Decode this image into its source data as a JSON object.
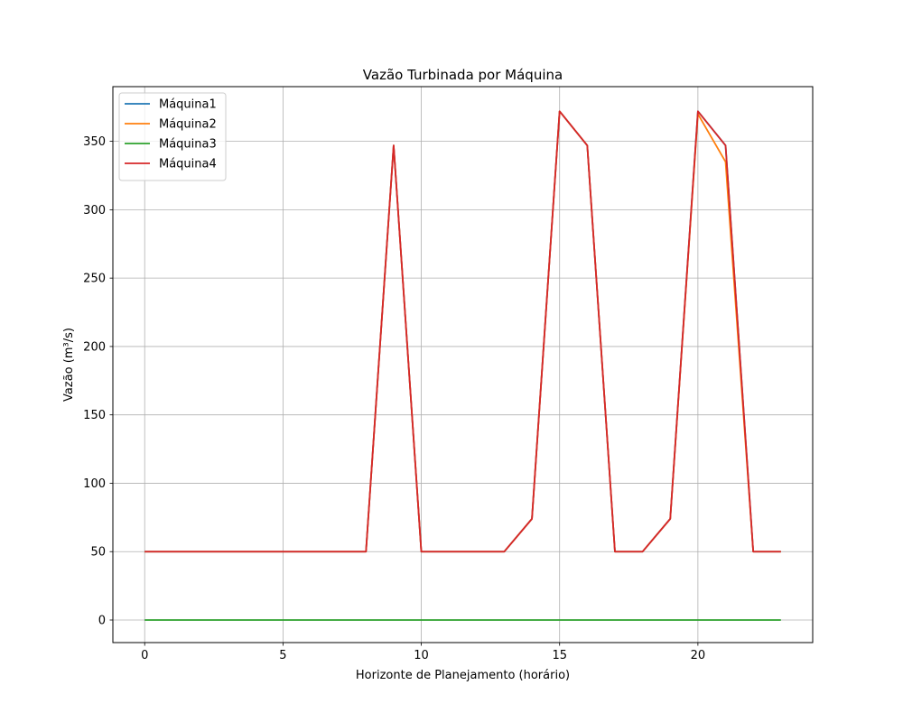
{
  "chart_data": {
    "type": "line",
    "title": "Vazão Turbinada por Máquina",
    "xlabel": "Horizonte de Planejamento (horário)",
    "ylabel": "Vazão (m³/s)",
    "xlim": [
      -1.15,
      24.15
    ],
    "ylim": [
      -16.5,
      390
    ],
    "xticks": [
      0,
      5,
      10,
      15,
      20
    ],
    "yticks": [
      0,
      50,
      100,
      150,
      200,
      250,
      300,
      350
    ],
    "grid": true,
    "legend_position": "top-left",
    "x": [
      0,
      1,
      2,
      3,
      4,
      5,
      6,
      7,
      8,
      9,
      10,
      11,
      12,
      13,
      14,
      15,
      16,
      17,
      18,
      19,
      20,
      21,
      22,
      23
    ],
    "series": [
      {
        "name": "Máquina1",
        "color": "#1f77b4",
        "values": [
          50,
          50,
          50,
          50,
          50,
          50,
          50,
          50,
          50,
          347,
          50,
          50,
          50,
          50,
          74,
          372,
          347,
          50,
          50,
          74,
          372,
          347,
          50,
          50
        ]
      },
      {
        "name": "Máquina2",
        "color": "#ff7f0e",
        "values": [
          50,
          50,
          50,
          50,
          50,
          50,
          50,
          50,
          50,
          347,
          50,
          50,
          50,
          50,
          74,
          372,
          347,
          50,
          50,
          74,
          370,
          335,
          50,
          50
        ]
      },
      {
        "name": "Máquina3",
        "color": "#2ca02c",
        "values": [
          0,
          0,
          0,
          0,
          0,
          0,
          0,
          0,
          0,
          0,
          0,
          0,
          0,
          0,
          0,
          0,
          0,
          0,
          0,
          0,
          0,
          0,
          0,
          0
        ]
      },
      {
        "name": "Máquina4",
        "color": "#d62728",
        "values": [
          50,
          50,
          50,
          50,
          50,
          50,
          50,
          50,
          50,
          347,
          50,
          50,
          50,
          50,
          74,
          372,
          347,
          50,
          50,
          74,
          372,
          347,
          50,
          50
        ]
      }
    ]
  }
}
